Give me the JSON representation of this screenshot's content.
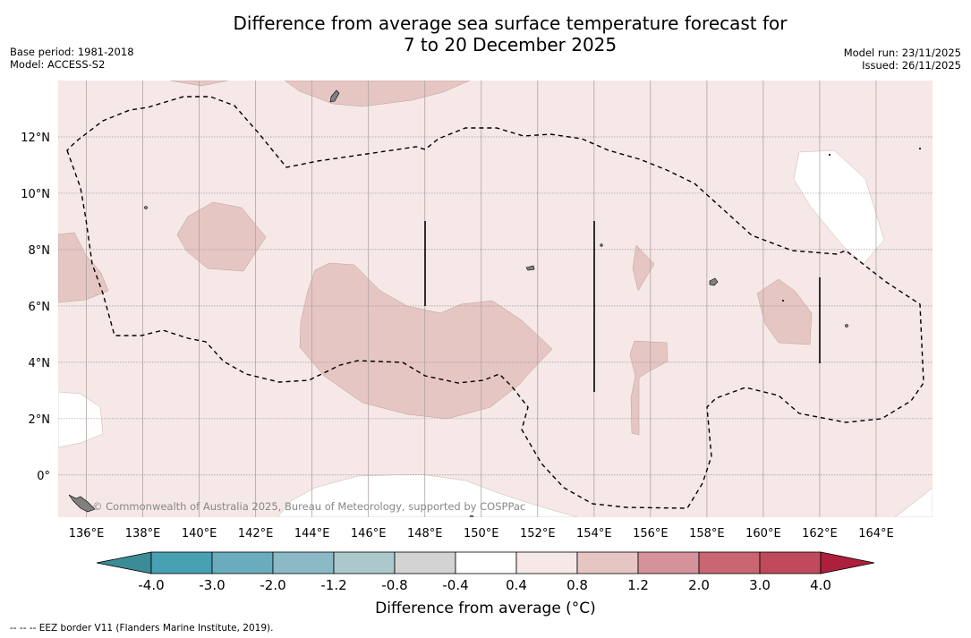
{
  "title": {
    "line1": "Difference from average sea surface temperature forecast for",
    "line2": "7 to 20 December 2025"
  },
  "meta_left": {
    "base_period": "Base period: 1981-2018",
    "model": "Model: ACCESS-S2"
  },
  "meta_right": {
    "model_run": "Model run: 23/11/2025",
    "issued": "Issued: 26/11/2025"
  },
  "map": {
    "lon_range": [
      135,
      166
    ],
    "lat_range": [
      -1.5,
      14
    ],
    "lon_ticks": [
      "136°E",
      "138°E",
      "140°E",
      "142°E",
      "144°E",
      "146°E",
      "148°E",
      "150°E",
      "152°E",
      "154°E",
      "156°E",
      "158°E",
      "160°E",
      "162°E",
      "164°E"
    ],
    "lat_ticks": [
      "0°",
      "2°N",
      "4°N",
      "6°N",
      "8°N",
      "10°N",
      "12°N"
    ],
    "background_class": "0.4 to 0.8",
    "credit": "© Commonwealth of Australia 2025, Bureau of Meteorology, supported by COSPPac",
    "colors": {
      "bg": "#f5e8e6",
      "warm1": "#e6c6c3",
      "white": "#ffffff",
      "land": "#808080",
      "eez": "#000000",
      "grid": "#b0b0b0"
    }
  },
  "colorbar": {
    "ticks": [
      "-4.0",
      "-3.0",
      "-2.0",
      "-1.2",
      "-0.8",
      "-0.4",
      "0.4",
      "0.8",
      "1.2",
      "2.0",
      "3.0",
      "4.0"
    ],
    "colors": [
      "#3b8c96",
      "#47a1b3",
      "#6aacbd",
      "#8bbac6",
      "#abc9cc",
      "#d3d3d3",
      "#ffffff",
      "#f5e8e6",
      "#e6c6c3",
      "#d6929a",
      "#c96672",
      "#bf4a5b",
      "#ad1f3c"
    ],
    "label": "Difference from average (°C)"
  },
  "footnote": "--  --  -- EEZ border V11 (Flanders Marine Institute, 2019)."
}
